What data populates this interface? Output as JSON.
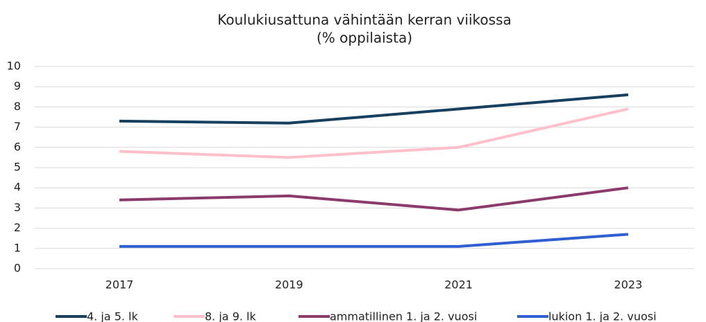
{
  "chart_data": {
    "type": "line",
    "title": "Koulukiusattuna vähintään kerran viikossa",
    "subtitle": "(% oppilaista)",
    "categories": [
      "2017",
      "2019",
      "2021",
      "2023"
    ],
    "series": [
      {
        "name": "4. ja 5. lk",
        "color": "#173f5f",
        "values": [
          7.3,
          7.2,
          7.9,
          8.6
        ]
      },
      {
        "name": "8. ja 9. lk",
        "color": "#ffbfcb",
        "values": [
          5.8,
          5.5,
          6.0,
          7.9
        ]
      },
      {
        "name": "ammatillinen 1. ja 2. vuosi",
        "color": "#8b3a6b",
        "values": [
          3.4,
          3.6,
          2.9,
          4.0
        ]
      },
      {
        "name": "lukion 1. ja 2. vuosi",
        "color": "#2f5fd0",
        "values": [
          1.1,
          1.1,
          1.1,
          1.7
        ]
      }
    ],
    "ylim": [
      0,
      10
    ],
    "yticks": [
      0,
      1,
      2,
      3,
      4,
      5,
      6,
      7,
      8,
      9,
      10
    ],
    "grid": true,
    "legend": "bottom"
  }
}
